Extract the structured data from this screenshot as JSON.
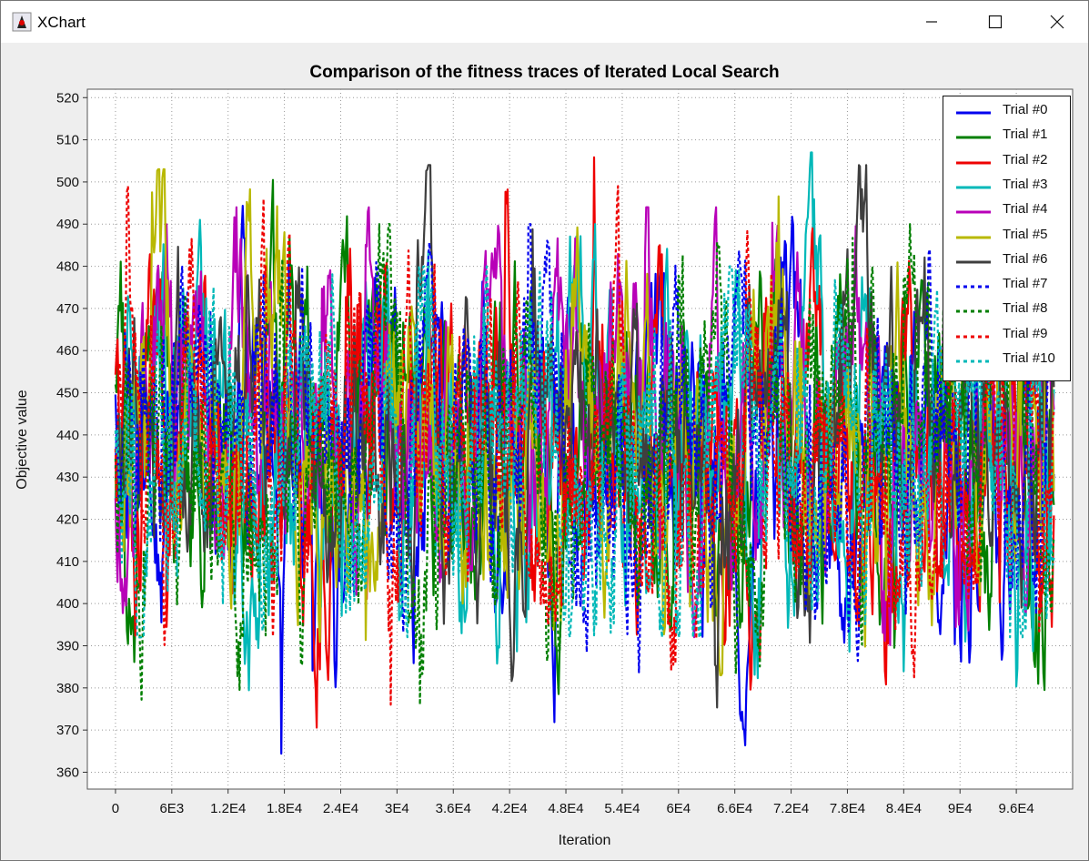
{
  "window": {
    "title": "XChart",
    "icon": "java-duke-icon",
    "controls": [
      "minimize-icon",
      "maximize-icon",
      "close-icon"
    ]
  },
  "chart_data": {
    "type": "line",
    "title": "Comparison of the fitness traces of Iterated Local Search",
    "xlabel": "Iteration",
    "ylabel": "Objective value",
    "xlim": [
      -3000,
      102000
    ],
    "ylim": [
      356,
      522
    ],
    "x_ticks": [
      0,
      6000,
      12000,
      18000,
      24000,
      30000,
      36000,
      42000,
      48000,
      54000,
      60000,
      66000,
      72000,
      78000,
      84000,
      90000,
      96000
    ],
    "x_tick_labels": [
      "0",
      "6E3",
      "1.2E4",
      "1.8E4",
      "2.4E4",
      "3E4",
      "3.6E4",
      "4.2E4",
      "4.8E4",
      "5.4E4",
      "6E4",
      "6.6E4",
      "7.2E4",
      "7.8E4",
      "8.4E4",
      "9E4",
      "9.6E4"
    ],
    "y_ticks": [
      360,
      370,
      380,
      390,
      400,
      410,
      420,
      430,
      440,
      450,
      460,
      470,
      480,
      490,
      500,
      510,
      520
    ],
    "y_tick_labels": [
      "360",
      "370",
      "380",
      "390",
      "400",
      "410",
      "420",
      "430",
      "440",
      "450",
      "460",
      "470",
      "480",
      "490",
      "500",
      "510",
      "520"
    ],
    "grid": true,
    "legend_position": "top-right",
    "x_end": 100000,
    "series": [
      {
        "name": "Trial #0",
        "color": "#0000ee",
        "dashed": false,
        "center": 438,
        "min": 362,
        "max": 508
      },
      {
        "name": "Trial #1",
        "color": "#007f00",
        "dashed": false,
        "center": 438,
        "min": 371,
        "max": 515
      },
      {
        "name": "Trial #2",
        "color": "#ee0000",
        "dashed": false,
        "center": 438,
        "min": 365,
        "max": 509
      },
      {
        "name": "Trial #3",
        "color": "#00b8b8",
        "dashed": false,
        "center": 440,
        "min": 364,
        "max": 507
      },
      {
        "name": "Trial #4",
        "color": "#b800b8",
        "dashed": false,
        "center": 438,
        "min": 378,
        "max": 494
      },
      {
        "name": "Trial #5",
        "color": "#b8b800",
        "dashed": false,
        "center": 440,
        "min": 383,
        "max": 503
      },
      {
        "name": "Trial #6",
        "color": "#3f3f3f",
        "dashed": false,
        "center": 438,
        "min": 362,
        "max": 504
      },
      {
        "name": "Trial #7",
        "color": "#0000ee",
        "dashed": true,
        "center": 438,
        "min": 368,
        "max": 490
      },
      {
        "name": "Trial #8",
        "color": "#007f00",
        "dashed": true,
        "center": 438,
        "min": 376,
        "max": 490
      },
      {
        "name": "Trial #9",
        "color": "#ee0000",
        "dashed": true,
        "center": 438,
        "min": 376,
        "max": 499
      },
      {
        "name": "Trial #10",
        "color": "#00b8b8",
        "dashed": true,
        "center": 440,
        "min": 392,
        "max": 480
      }
    ]
  }
}
